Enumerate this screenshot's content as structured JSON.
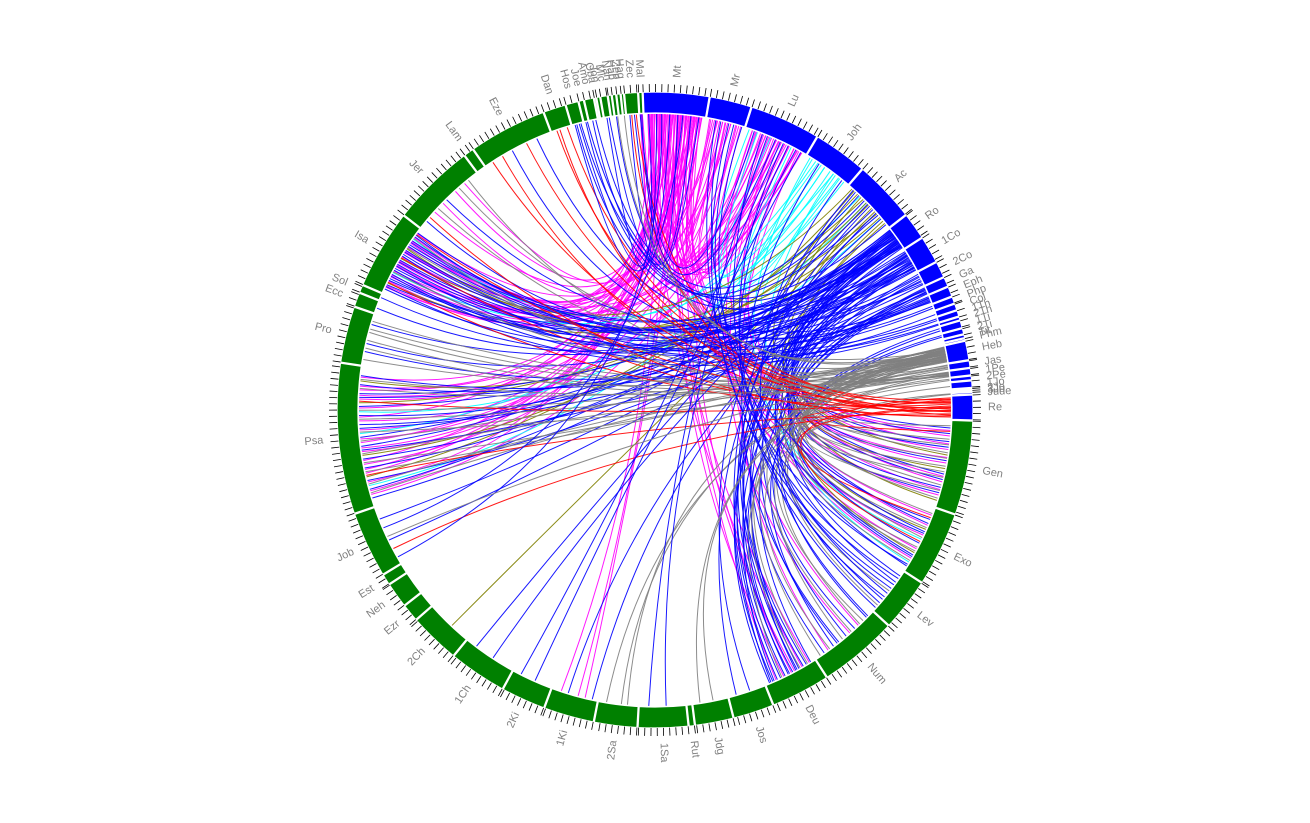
{
  "chart_data": {
    "type": "chord",
    "colors": {
      "old_testament": "#008000",
      "new_testament": "#0000ff",
      "tick": "#000000",
      "label": "#808080",
      "link_palette": [
        "#ff00ff",
        "#0000ff",
        "#808080",
        "#00ffff",
        "#808000",
        "#ff0000"
      ]
    },
    "segments": [
      {
        "label": "Gen",
        "testament": "old",
        "size": 1533
      },
      {
        "label": "Exo",
        "testament": "old",
        "size": 1213
      },
      {
        "label": "Lev",
        "testament": "old",
        "size": 859
      },
      {
        "label": "Num",
        "testament": "old",
        "size": 1288
      },
      {
        "label": "Deu",
        "testament": "old",
        "size": 959
      },
      {
        "label": "Jos",
        "testament": "old",
        "size": 658
      },
      {
        "label": "Jdg",
        "testament": "old",
        "size": 618
      },
      {
        "label": "Rut",
        "testament": "old",
        "size": 85
      },
      {
        "label": "1Sa",
        "testament": "old",
        "size": 810
      },
      {
        "label": "2Sa",
        "testament": "old",
        "size": 695
      },
      {
        "label": "1Ki",
        "testament": "old",
        "size": 816
      },
      {
        "label": "2Ki",
        "testament": "old",
        "size": 719
      },
      {
        "label": "1Ch",
        "testament": "old",
        "size": 942
      },
      {
        "label": "2Ch",
        "testament": "old",
        "size": 822
      },
      {
        "label": "Ezr",
        "testament": "old",
        "size": 280
      },
      {
        "label": "Neh",
        "testament": "old",
        "size": 406
      },
      {
        "label": "Est",
        "testament": "old",
        "size": 167
      },
      {
        "label": "Job",
        "testament": "old",
        "size": 1070
      },
      {
        "label": "Psa",
        "testament": "old",
        "size": 2461
      },
      {
        "label": "Pro",
        "testament": "old",
        "size": 915
      },
      {
        "label": "Ecc",
        "testament": "old",
        "size": 222
      },
      {
        "label": "Sol",
        "testament": "old",
        "size": 117
      },
      {
        "label": "Isa",
        "testament": "old",
        "size": 1292
      },
      {
        "label": "Jer",
        "testament": "old",
        "size": 1364
      },
      {
        "label": "Lam",
        "testament": "old",
        "size": 154
      },
      {
        "label": "Eze",
        "testament": "old",
        "size": 1273
      },
      {
        "label": "Dan",
        "testament": "old",
        "size": 357
      },
      {
        "label": "Hos",
        "testament": "old",
        "size": 197
      },
      {
        "label": "Joe",
        "testament": "old",
        "size": 73
      },
      {
        "label": "Amo",
        "testament": "old",
        "size": 146
      },
      {
        "label": "Oba",
        "testament": "old",
        "size": 21
      },
      {
        "label": "Jon",
        "testament": "old",
        "size": 48
      },
      {
        "label": "Mic",
        "testament": "old",
        "size": 105
      },
      {
        "label": "Nah",
        "testament": "old",
        "size": 47
      },
      {
        "label": "Hab",
        "testament": "old",
        "size": 56
      },
      {
        "label": "Zep",
        "testament": "old",
        "size": 53
      },
      {
        "label": "Hag",
        "testament": "old",
        "size": 38
      },
      {
        "label": "Zec",
        "testament": "old",
        "size": 211
      },
      {
        "label": "Mal",
        "testament": "old",
        "size": 55
      },
      {
        "label": "Mt",
        "testament": "new",
        "size": 1071
      },
      {
        "label": "Mr",
        "testament": "new",
        "size": 678
      },
      {
        "label": "Lu",
        "testament": "new",
        "size": 1151
      },
      {
        "label": "Joh",
        "testament": "new",
        "size": 879
      },
      {
        "label": "Ac",
        "testament": "new",
        "size": 1007
      },
      {
        "label": "Ro",
        "testament": "new",
        "size": 433
      },
      {
        "label": "1Co",
        "testament": "new",
        "size": 437
      },
      {
        "label": "2Co",
        "testament": "new",
        "size": 257
      },
      {
        "label": "Ga",
        "testament": "new",
        "size": 149
      },
      {
        "label": "Eph",
        "testament": "new",
        "size": 155
      },
      {
        "label": "Php",
        "testament": "new",
        "size": 104
      },
      {
        "label": "Col",
        "testament": "new",
        "size": 95
      },
      {
        "label": "1Th",
        "testament": "new",
        "size": 89
      },
      {
        "label": "2Th",
        "testament": "new",
        "size": 47
      },
      {
        "label": "1Ti",
        "testament": "new",
        "size": 113
      },
      {
        "label": "2Ti",
        "testament": "new",
        "size": 83
      },
      {
        "label": "Tit",
        "testament": "new",
        "size": 46
      },
      {
        "label": "Phm",
        "testament": "new",
        "size": 25
      },
      {
        "label": "Heb",
        "testament": "new",
        "size": 303
      },
      {
        "label": "Jas",
        "testament": "new",
        "size": 108
      },
      {
        "label": "1Pe",
        "testament": "new",
        "size": 105
      },
      {
        "label": "2Pe",
        "testament": "new",
        "size": 61
      },
      {
        "label": "1Jo",
        "testament": "new",
        "size": 105
      },
      {
        "label": "2Jo",
        "testament": "new",
        "size": 13
      },
      {
        "label": "3Jo",
        "testament": "new",
        "size": 14
      },
      {
        "label": "Jude",
        "testament": "new",
        "size": 25
      },
      {
        "label": "Re",
        "testament": "new",
        "size": 404
      }
    ],
    "links": [
      {
        "from": "Mt",
        "to": "Psa",
        "count": 12,
        "color": "#ff00ff"
      },
      {
        "from": "Mt",
        "to": "Isa",
        "count": 9,
        "color": "#ff00ff"
      },
      {
        "from": "Mt",
        "to": "Jer",
        "count": 4,
        "color": "#ff00ff"
      },
      {
        "from": "Mt",
        "to": "Gen",
        "count": 6,
        "color": "#ff00ff"
      },
      {
        "from": "Mt",
        "to": "Exo",
        "count": 5,
        "color": "#ff00ff"
      },
      {
        "from": "Mt",
        "to": "Deu",
        "count": 6,
        "color": "#ff00ff"
      },
      {
        "from": "Mt",
        "to": "1Ki",
        "count": 3,
        "color": "#ff00ff"
      },
      {
        "from": "Mt",
        "to": "Mal",
        "count": 3,
        "color": "#ff00ff"
      },
      {
        "from": "Mt",
        "to": "Lu",
        "count": 8,
        "color": "#ff00ff"
      },
      {
        "from": "Mt",
        "to": "Mr",
        "count": 6,
        "color": "#ff00ff"
      },
      {
        "from": "Mr",
        "to": "Lu",
        "count": 5,
        "color": "#ff00ff"
      },
      {
        "from": "Mr",
        "to": "Isa",
        "count": 4,
        "color": "#ff00ff"
      },
      {
        "from": "Mr",
        "to": "Psa",
        "count": 3,
        "color": "#ff00ff"
      },
      {
        "from": "Lu",
        "to": "Isa",
        "count": 5,
        "color": "#ff00ff"
      },
      {
        "from": "Lu",
        "to": "Psa",
        "count": 5,
        "color": "#ff00ff"
      },
      {
        "from": "Lu",
        "to": "Gen",
        "count": 4,
        "color": "#ff00ff"
      },
      {
        "from": "Lu",
        "to": "Num",
        "count": 3,
        "color": "#ff00ff"
      },
      {
        "from": "Lu",
        "to": "Joh",
        "count": 4,
        "color": "#00ffff"
      },
      {
        "from": "Joh",
        "to": "Ac",
        "count": 3,
        "color": "#00ffff"
      },
      {
        "from": "Joh",
        "to": "Psa",
        "count": 3,
        "color": "#00ffff"
      },
      {
        "from": "Joh",
        "to": "Isa",
        "count": 2,
        "color": "#00ffff"
      },
      {
        "from": "Joh",
        "to": "Exo",
        "count": 2,
        "color": "#00ffff"
      },
      {
        "from": "Ac",
        "to": "Psa",
        "count": 4,
        "color": "#808000"
      },
      {
        "from": "Ac",
        "to": "Gen",
        "count": 3,
        "color": "#808000"
      },
      {
        "from": "Ac",
        "to": "Isa",
        "count": 3,
        "color": "#808000"
      },
      {
        "from": "Ac",
        "to": "2Ch",
        "count": 1,
        "color": "#808000"
      },
      {
        "from": "Ac",
        "to": "Exo",
        "count": 2,
        "color": "#808000"
      },
      {
        "from": "Ro",
        "to": "Psa",
        "count": 8,
        "color": "#0000ff"
      },
      {
        "from": "Ro",
        "to": "Isa",
        "count": 8,
        "color": "#0000ff"
      },
      {
        "from": "Ro",
        "to": "Gen",
        "count": 5,
        "color": "#0000ff"
      },
      {
        "from": "Ro",
        "to": "Deu",
        "count": 5,
        "color": "#0000ff"
      },
      {
        "from": "Ro",
        "to": "Lev",
        "count": 3,
        "color": "#0000ff"
      },
      {
        "from": "Ro",
        "to": "Hos",
        "count": 2,
        "color": "#0000ff"
      },
      {
        "from": "Ro",
        "to": "1Ki",
        "count": 2,
        "color": "#0000ff"
      },
      {
        "from": "Ro",
        "to": "Pro",
        "count": 2,
        "color": "#0000ff"
      },
      {
        "from": "1Co",
        "to": "Isa",
        "count": 5,
        "color": "#0000ff"
      },
      {
        "from": "1Co",
        "to": "Deu",
        "count": 4,
        "color": "#0000ff"
      },
      {
        "from": "1Co",
        "to": "Num",
        "count": 4,
        "color": "#0000ff"
      },
      {
        "from": "1Co",
        "to": "Psa",
        "count": 3,
        "color": "#0000ff"
      },
      {
        "from": "1Co",
        "to": "Exo",
        "count": 3,
        "color": "#0000ff"
      },
      {
        "from": "1Co",
        "to": "Jer",
        "count": 2,
        "color": "#0000ff"
      },
      {
        "from": "1Co",
        "to": "Job",
        "count": 2,
        "color": "#0000ff"
      },
      {
        "from": "2Co",
        "to": "Isa",
        "count": 3,
        "color": "#0000ff"
      },
      {
        "from": "2Co",
        "to": "Exo",
        "count": 3,
        "color": "#0000ff"
      },
      {
        "from": "2Co",
        "to": "Psa",
        "count": 2,
        "color": "#0000ff"
      },
      {
        "from": "Ga",
        "to": "Gen",
        "count": 4,
        "color": "#0000ff"
      },
      {
        "from": "Ga",
        "to": "Lev",
        "count": 2,
        "color": "#0000ff"
      },
      {
        "from": "Ga",
        "to": "Deu",
        "count": 2,
        "color": "#0000ff"
      },
      {
        "from": "Eph",
        "to": "Psa",
        "count": 3,
        "color": "#0000ff"
      },
      {
        "from": "Eph",
        "to": "Isa",
        "count": 2,
        "color": "#0000ff"
      },
      {
        "from": "Eph",
        "to": "Eze",
        "count": 2,
        "color": "#0000ff"
      },
      {
        "from": "Php",
        "to": "Isa",
        "count": 2,
        "color": "#0000ff"
      },
      {
        "from": "Col",
        "to": "Pro",
        "count": 1,
        "color": "#0000ff"
      },
      {
        "from": "1Th",
        "to": "Isa",
        "count": 2,
        "color": "#0000ff"
      },
      {
        "from": "2Th",
        "to": "Isa",
        "count": 2,
        "color": "#0000ff"
      },
      {
        "from": "1Ti",
        "to": "Deu",
        "count": 2,
        "color": "#0000ff"
      },
      {
        "from": "2Ti",
        "to": "Num",
        "count": 2,
        "color": "#0000ff"
      },
      {
        "from": "Heb",
        "to": "Psa",
        "count": 8,
        "color": "#808080"
      },
      {
        "from": "Heb",
        "to": "Gen",
        "count": 6,
        "color": "#808080"
      },
      {
        "from": "Heb",
        "to": "Exo",
        "count": 6,
        "color": "#808080"
      },
      {
        "from": "Heb",
        "to": "Jer",
        "count": 3,
        "color": "#808080"
      },
      {
        "from": "Heb",
        "to": "Num",
        "count": 4,
        "color": "#808080"
      },
      {
        "from": "Heb",
        "to": "Deu",
        "count": 3,
        "color": "#808080"
      },
      {
        "from": "Heb",
        "to": "2Sa",
        "count": 3,
        "color": "#808080"
      },
      {
        "from": "Heb",
        "to": "Pro",
        "count": 2,
        "color": "#808080"
      },
      {
        "from": "Jas",
        "to": "Pro",
        "count": 2,
        "color": "#808080"
      },
      {
        "from": "Jas",
        "to": "Gen",
        "count": 2,
        "color": "#808080"
      },
      {
        "from": "1Pe",
        "to": "Isa",
        "count": 3,
        "color": "#808080"
      },
      {
        "from": "1Pe",
        "to": "Psa",
        "count": 3,
        "color": "#808080"
      },
      {
        "from": "1Pe",
        "to": "Lev",
        "count": 2,
        "color": "#808080"
      },
      {
        "from": "2Pe",
        "to": "Gen",
        "count": 2,
        "color": "#808080"
      },
      {
        "from": "1Jo",
        "to": "Gen",
        "count": 1,
        "color": "#808080"
      },
      {
        "from": "Jude",
        "to": "Num",
        "count": 2,
        "color": "#808080"
      },
      {
        "from": "Re",
        "to": "Eze",
        "count": 3,
        "color": "#ff0000"
      },
      {
        "from": "Re",
        "to": "Dan",
        "count": 3,
        "color": "#ff0000"
      },
      {
        "from": "Re",
        "to": "Isa",
        "count": 3,
        "color": "#ff0000"
      },
      {
        "from": "Re",
        "to": "Psa",
        "count": 2,
        "color": "#ff0000"
      },
      {
        "from": "Re",
        "to": "Exo",
        "count": 2,
        "color": "#ff0000"
      },
      {
        "from": "Re",
        "to": "Zec",
        "count": 2,
        "color": "#ff0000"
      },
      {
        "from": "Re",
        "to": "Jer",
        "count": 1,
        "color": "#ff0000"
      },
      {
        "from": "Re",
        "to": "Job",
        "count": 1,
        "color": "#ff0000"
      },
      {
        "from": "Re",
        "to": "Gen",
        "count": 1,
        "color": "#ff0000"
      },
      {
        "from": "Mt",
        "to": "Zec",
        "count": 2,
        "color": "#0000ff"
      },
      {
        "from": "Mt",
        "to": "Mic",
        "count": 2,
        "color": "#0000ff"
      },
      {
        "from": "Mt",
        "to": "Hos",
        "count": 2,
        "color": "#0000ff"
      },
      {
        "from": "Mt",
        "to": "Job",
        "count": 2,
        "color": "#0000ff"
      },
      {
        "from": "Mr",
        "to": "Exo",
        "count": 3,
        "color": "#0000ff"
      },
      {
        "from": "Mr",
        "to": "Lev",
        "count": 2,
        "color": "#0000ff"
      },
      {
        "from": "Lu",
        "to": "Lev",
        "count": 3,
        "color": "#0000ff"
      },
      {
        "from": "Lu",
        "to": "Mal",
        "count": 2,
        "color": "#0000ff"
      },
      {
        "from": "Lu",
        "to": "1Sa",
        "count": 2,
        "color": "#0000ff"
      },
      {
        "from": "Lu",
        "to": "2Ki",
        "count": 2,
        "color": "#0000ff"
      },
      {
        "from": "Joh",
        "to": "Num",
        "count": 2,
        "color": "#0000ff"
      },
      {
        "from": "Ac",
        "to": "Deu",
        "count": 3,
        "color": "#0000ff"
      },
      {
        "from": "Ac",
        "to": "Joe",
        "count": 2,
        "color": "#0000ff"
      },
      {
        "from": "Ac",
        "to": "Amo",
        "count": 2,
        "color": "#0000ff"
      },
      {
        "from": "Ac",
        "to": "1Ch",
        "count": 2,
        "color": "#0000ff"
      },
      {
        "from": "Ac",
        "to": "Jos",
        "count": 2,
        "color": "#0000ff"
      },
      {
        "from": "Ro",
        "to": "Ecc",
        "count": 1,
        "color": "#0000ff"
      },
      {
        "from": "Ro",
        "to": "Hab",
        "count": 1,
        "color": "#0000ff"
      },
      {
        "from": "1Co",
        "to": "Sol",
        "count": 1,
        "color": "#0000ff"
      },
      {
        "from": "Heb",
        "to": "Hag",
        "count": 1,
        "color": "#808080"
      },
      {
        "from": "Heb",
        "to": "Jdg",
        "count": 2,
        "color": "#808080"
      },
      {
        "from": "Heb",
        "to": "Hab",
        "count": 1,
        "color": "#808080"
      },
      {
        "from": "Jas",
        "to": "Job",
        "count": 1,
        "color": "#808080"
      },
      {
        "from": "1Pe",
        "to": "Pro",
        "count": 2,
        "color": "#808080"
      }
    ]
  }
}
